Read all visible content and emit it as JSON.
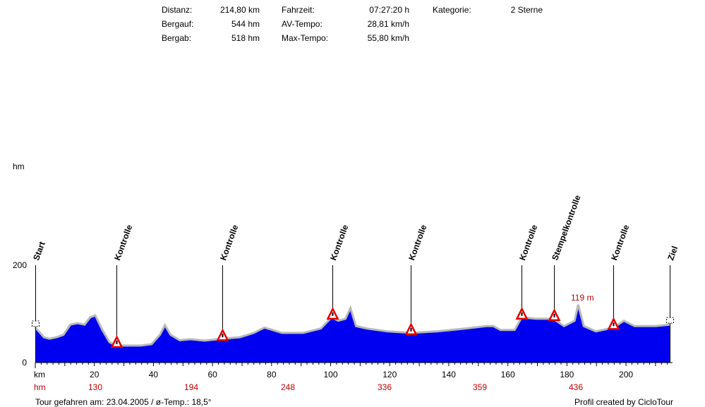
{
  "stats": {
    "distanz_label": "Distanz:",
    "distanz": "214,80 km",
    "bergauf_label": "Bergauf:",
    "bergauf": "544 hm",
    "bergab_label": "Bergab:",
    "bergab": "518 hm",
    "fahrzeit_label": "Fahrzeit:",
    "fahrzeit": "07:27:20 h",
    "av_label": "AV-Tempo:",
    "av": "28,81 km/h",
    "max_label": "Max-Tempo:",
    "max": "55,80 km/h",
    "kategorie_label": "Kategorie:",
    "kategorie": "2 Sterne"
  },
  "footer": {
    "left": "Tour gefahren am: 23.04.2005  /  ø-Temp.: 18,5°",
    "right": "Profil created by CicloTour"
  },
  "hm_row": {
    "label": "hm",
    "values": [
      "130",
      "194",
      "248",
      "336",
      "359",
      "436"
    ]
  },
  "chart_data": {
    "type": "area",
    "title": "",
    "xlabel": "km",
    "ylabel": "hm",
    "xlim": [
      0,
      214.8
    ],
    "ylim": [
      0,
      200
    ],
    "xticks": [
      20,
      40,
      60,
      80,
      100,
      120,
      140,
      160,
      180,
      200
    ],
    "yticks": [
      0,
      200
    ],
    "x": [
      0,
      1.2,
      2.9,
      4.8,
      7.2,
      9.5,
      11.9,
      14.3,
      16.7,
      18.6,
      20.3,
      22.7,
      25.1,
      27.4,
      31,
      35.8,
      39.4,
      42.2,
      43.9,
      45.8,
      48.9,
      52.5,
      57.3,
      63.3,
      69.2,
      74,
      77.6,
      83.5,
      90.7,
      96.7,
      100.3,
      102.6,
      105,
      106.7,
      108.6,
      112.2,
      119.3,
      127.2,
      136,
      145.6,
      152.7,
      155.1,
      157.5,
      162.3,
      164.7,
      169.5,
      175.4,
      179,
      182.6,
      183.8,
      185.7,
      189.8,
      195.8,
      199.3,
      202.9,
      210.1,
      214.8
    ],
    "y": [
      71,
      64,
      52,
      49,
      52,
      57,
      78,
      81,
      78,
      93,
      97,
      67,
      42,
      35,
      35,
      35,
      38,
      57,
      77,
      57,
      46,
      48,
      45,
      49,
      52,
      61,
      72,
      61,
      61,
      70,
      93,
      86,
      90,
      112,
      75,
      70,
      64,
      61,
      64,
      70,
      75,
      75,
      67,
      67,
      93,
      90,
      90,
      75,
      86,
      119,
      75,
      64,
      72,
      86,
      75,
      75,
      78
    ],
    "annotations": [
      {
        "text": "119 m",
        "km": 183.8,
        "value": 119
      }
    ],
    "markers": [
      {
        "label": "Start",
        "km": 0,
        "icon": "flag"
      },
      {
        "label": "Kontrolle",
        "km": 27.5,
        "icon": "warning"
      },
      {
        "label": "Kontrolle",
        "km": 63.3,
        "icon": "warning"
      },
      {
        "label": "Kontrolle",
        "km": 100.5,
        "icon": "warning"
      },
      {
        "label": "Kontrolle",
        "km": 127.2,
        "icon": "warning"
      },
      {
        "label": "Kontrolle",
        "km": 164.7,
        "icon": "warning"
      },
      {
        "label": "Stempelkontrolle",
        "km": 175.7,
        "icon": "warning"
      },
      {
        "label": "Kontrolle",
        "km": 195.8,
        "icon": "warning"
      },
      {
        "label": "Ziel",
        "km": 214.8,
        "icon": "flag"
      }
    ]
  }
}
